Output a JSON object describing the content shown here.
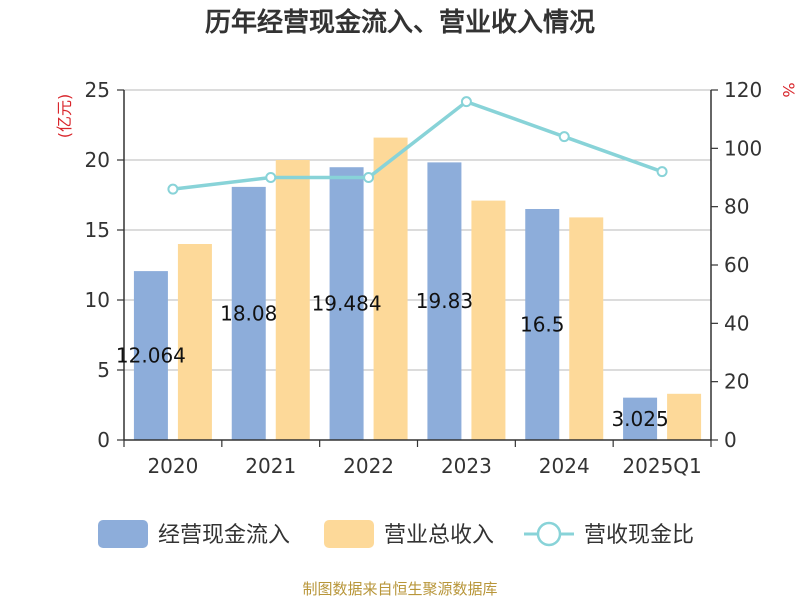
{
  "chart_data": {
    "type": "bar",
    "title": "历年经营现金流入、营业收入情况",
    "categories": [
      "2020",
      "2021",
      "2022",
      "2023",
      "2024",
      "2025Q1"
    ],
    "y_left": {
      "unit": "(亿元)",
      "ylim": [
        0,
        25
      ],
      "ticks": [
        "0",
        "5",
        "10",
        "15",
        "20",
        "25"
      ]
    },
    "y_right": {
      "unit": "%",
      "ylim": [
        0,
        120
      ],
      "ticks": [
        "0",
        "20",
        "40",
        "60",
        "80",
        "100",
        "120"
      ]
    },
    "series": [
      {
        "name": "经营现金流入",
        "type": "bar",
        "axis": "left",
        "color": "#8dadda",
        "values": [
          12.064,
          18.08,
          19.484,
          19.83,
          16.5,
          3.025
        ],
        "labels": [
          "12.064",
          "18.08",
          "19.484",
          "19.83",
          "16.5",
          "3.025"
        ]
      },
      {
        "name": "营业总收入",
        "type": "bar",
        "axis": "left",
        "color": "#fdd999",
        "values": [
          14.0,
          20.0,
          21.6,
          17.1,
          15.9,
          3.3
        ]
      },
      {
        "name": "营收现金比",
        "type": "line",
        "axis": "right",
        "color": "#88d3d8",
        "values": [
          86,
          90,
          90,
          116,
          104,
          92
        ]
      }
    ],
    "grid": true,
    "legend_position": "bottom"
  },
  "footer": {
    "source": "制图数据来自恒生聚源数据库"
  }
}
